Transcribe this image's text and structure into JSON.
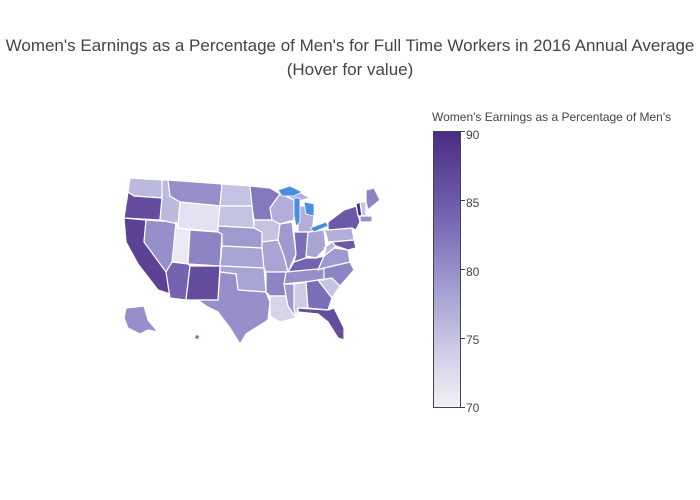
{
  "title": {
    "line1": "Women's Earnings as a Percentage of Men's for Full Time Workers in 2016 Annual Average",
    "line2": "(Hover for value)"
  },
  "colorbar": {
    "title": "Women's Earnings as a Percentage of Men's",
    "ticks": [
      "90",
      "85",
      "80",
      "75",
      "70"
    ],
    "range": [
      70,
      90
    ],
    "colors": {
      "high": "#4b2c83",
      "mid": "#9e9ad0",
      "low": "#f2f0f7",
      "highlight": "#4a8ee0"
    }
  },
  "chart_data": {
    "type": "choropleth",
    "title": "Women's Earnings as a Percentage of Men's for Full Time Workers in 2016 Annual Average",
    "subtitle": "(Hover for value)",
    "colorbar_title": "Women's Earnings as a Percentage of Men's",
    "zrange": [
      70,
      90
    ],
    "regions": [
      {
        "state": "WA",
        "value": 77
      },
      {
        "state": "OR",
        "value": 87
      },
      {
        "state": "CA",
        "value": 88
      },
      {
        "state": "NV",
        "value": 81
      },
      {
        "state": "ID",
        "value": 77
      },
      {
        "state": "MT",
        "value": 81
      },
      {
        "state": "WY",
        "value": 72
      },
      {
        "state": "UT",
        "value": 71
      },
      {
        "state": "AZ",
        "value": 85
      },
      {
        "state": "NM",
        "value": 87
      },
      {
        "state": "CO",
        "value": 82
      },
      {
        "state": "ND",
        "value": 76
      },
      {
        "state": "SD",
        "value": 76
      },
      {
        "state": "NE",
        "value": 80
      },
      {
        "state": "KS",
        "value": 79
      },
      {
        "state": "OK",
        "value": 79
      },
      {
        "state": "TX",
        "value": 81
      },
      {
        "state": "MN",
        "value": 83
      },
      {
        "state": "IA",
        "value": 76
      },
      {
        "state": "MO",
        "value": 79
      },
      {
        "state": "AR",
        "value": 82
      },
      {
        "state": "LA",
        "value": 74
      },
      {
        "state": "WI",
        "value": 78
      },
      {
        "state": "IL",
        "value": 80
      },
      {
        "state": "MI",
        "value": 78
      },
      {
        "state": "IN",
        "value": 84
      },
      {
        "state": "OH",
        "value": 79
      },
      {
        "state": "KY",
        "value": 85
      },
      {
        "state": "TN",
        "value": 81
      },
      {
        "state": "MS",
        "value": 80
      },
      {
        "state": "AL",
        "value": 75
      },
      {
        "state": "GA",
        "value": 84
      },
      {
        "state": "FL",
        "value": 87
      },
      {
        "state": "SC",
        "value": 76
      },
      {
        "state": "NC",
        "value": 82
      },
      {
        "state": "VA",
        "value": 80
      },
      {
        "state": "WV",
        "value": 77
      },
      {
        "state": "PA",
        "value": 78
      },
      {
        "state": "NY",
        "value": 86
      },
      {
        "state": "ME",
        "value": 82
      },
      {
        "state": "VT",
        "value": 90
      },
      {
        "state": "NH",
        "value": 76
      },
      {
        "state": "MA",
        "value": 81
      },
      {
        "state": "MD",
        "value": 86
      },
      {
        "state": "AK",
        "value": 81
      },
      {
        "state": "HI",
        "value": 83
      }
    ]
  }
}
